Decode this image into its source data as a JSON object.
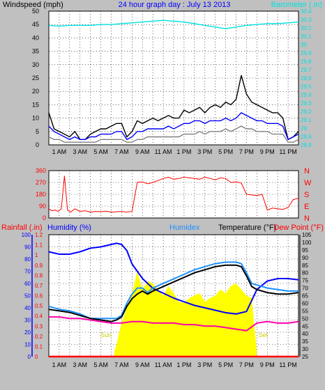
{
  "page": {
    "title": "24 hour graph day : July 13 2013",
    "colors": {
      "background": "#c0c0c0",
      "plot_background": "#ffffff",
      "grid": "#000000",
      "title": "#0000ff"
    }
  },
  "chart_data": [
    {
      "id": "wind-baro",
      "type": "line",
      "title": "24 hour graph day : July 13 2013",
      "x_tick_labels": [
        "1 AM",
        "3 AM",
        "5 AM",
        "7 AM",
        "9 AM",
        "11 AM",
        "1 PM",
        "3 PM",
        "5 PM",
        "7 PM",
        "9 PM",
        "11 PM"
      ],
      "x_hours": [
        1,
        3,
        5,
        7,
        9,
        11,
        13,
        15,
        17,
        19,
        21,
        23
      ],
      "xlim": [
        0,
        24
      ],
      "grid": true,
      "left_axis": {
        "label": "Windspeed (mph)",
        "color": "#000000",
        "ylim": [
          0,
          50
        ],
        "ticks": [
          0,
          5,
          10,
          15,
          20,
          25,
          30,
          35,
          40,
          45,
          50
        ]
      },
      "right_axis": {
        "label": "Barometer (.in)",
        "color": "#00e0e0",
        "ylim": [
          28.8,
          30.4
        ],
        "ticks": [
          "28.8",
          "28.9",
          "29",
          "29.1",
          "29.2",
          "29.3",
          "29.4",
          "29.5",
          "29.6",
          "29.7",
          "29.8",
          "29.9",
          "30",
          "30.1",
          "30.2",
          "30.3",
          "30.4"
        ]
      },
      "series": [
        {
          "key": "gust",
          "axis": "left",
          "color": "#000000",
          "x": [
            0,
            0.5,
            1,
            1.5,
            2,
            2.5,
            3,
            3.5,
            4,
            4.5,
            5,
            5.5,
            6,
            6.5,
            7,
            7.5,
            8,
            8.5,
            9,
            9.5,
            10,
            10.5,
            11,
            11.5,
            12,
            12.5,
            13,
            13.5,
            14,
            14.5,
            15,
            15.5,
            16,
            16.5,
            17,
            17.5,
            18,
            18.5,
            19,
            19.5,
            20,
            20.5,
            21,
            21.5,
            22,
            22.5,
            23,
            23.5,
            24
          ],
          "y": [
            12,
            6,
            5,
            4,
            3,
            5,
            2,
            2,
            4,
            5,
            6,
            6,
            7,
            8,
            8,
            3,
            5,
            9,
            8,
            9,
            10,
            9,
            10,
            11,
            10,
            10,
            13,
            12,
            13,
            14,
            12,
            14,
            15,
            14,
            16,
            15,
            17,
            26,
            19,
            16,
            15,
            14,
            13,
            12,
            12,
            10,
            2,
            3,
            5
          ]
        },
        {
          "key": "avg",
          "axis": "left",
          "color": "#0000ff",
          "x": [
            0,
            0.5,
            1,
            1.5,
            2,
            2.5,
            3,
            3.5,
            4,
            4.5,
            5,
            5.5,
            6,
            6.5,
            7,
            7.5,
            8,
            8.5,
            9,
            9.5,
            10,
            10.5,
            11,
            11.5,
            12,
            12.5,
            13,
            13.5,
            14,
            14.5,
            15,
            15.5,
            16,
            16.5,
            17,
            17.5,
            18,
            18.5,
            19,
            19.5,
            20,
            20.5,
            21,
            21.5,
            22,
            22.5,
            23,
            23.5,
            24
          ],
          "y": [
            7,
            5,
            4,
            3,
            2,
            3,
            2,
            2,
            3,
            3,
            4,
            4,
            4,
            5,
            5,
            2,
            3,
            5,
            5,
            6,
            6,
            6,
            6,
            7,
            6,
            7,
            8,
            8,
            9,
            9,
            8,
            9,
            9,
            9,
            10,
            9,
            10,
            12,
            11,
            10,
            9,
            9,
            8,
            8,
            8,
            7,
            2,
            3,
            4
          ]
        },
        {
          "key": "lull",
          "axis": "left",
          "color": "#808080",
          "x": [
            0,
            0.5,
            1,
            1.5,
            2,
            2.5,
            3,
            3.5,
            4,
            4.5,
            5,
            5.5,
            6,
            6.5,
            7,
            7.5,
            8,
            8.5,
            9,
            9.5,
            10,
            10.5,
            11,
            11.5,
            12,
            12.5,
            13,
            13.5,
            14,
            14.5,
            15,
            15.5,
            16,
            16.5,
            17,
            17.5,
            18,
            18.5,
            19,
            19.5,
            20,
            20.5,
            21,
            21.5,
            22,
            22.5,
            23,
            23.5,
            24
          ],
          "y": [
            3,
            2,
            2,
            1,
            1,
            1,
            1,
            1,
            1,
            1,
            2,
            2,
            2,
            2,
            2,
            1,
            1,
            2,
            2,
            3,
            3,
            3,
            3,
            3,
            3,
            3,
            4,
            4,
            4,
            5,
            4,
            5,
            5,
            5,
            6,
            5,
            6,
            7,
            6,
            6,
            5,
            5,
            5,
            4,
            4,
            4,
            1,
            1,
            2
          ]
        },
        {
          "key": "barometer",
          "axis": "right",
          "color": "#00e0e0",
          "x": [
            0,
            1,
            2,
            3,
            4,
            5,
            6,
            7,
            8,
            9,
            10,
            11,
            12,
            13,
            14,
            15,
            16,
            17,
            18,
            19,
            20,
            21,
            22,
            23,
            24
          ],
          "y": [
            30.23,
            30.22,
            30.23,
            30.23,
            30.23,
            30.24,
            30.24,
            30.25,
            30.26,
            30.27,
            30.28,
            30.29,
            30.28,
            30.27,
            30.25,
            30.23,
            30.21,
            30.19,
            30.21,
            30.23,
            30.24,
            30.25,
            30.25,
            30.26,
            30.27
          ]
        }
      ]
    },
    {
      "id": "wind-direction",
      "type": "scatter",
      "x_tick_labels": [],
      "x_hours": [
        1,
        3,
        5,
        7,
        9,
        11,
        13,
        15,
        17,
        19,
        21,
        23
      ],
      "xlim": [
        0,
        24
      ],
      "grid": true,
      "left_axis": {
        "label": "",
        "color": "#ff0000",
        "ylim": [
          0,
          360
        ],
        "ticks": [
          0,
          90,
          180,
          270,
          360
        ]
      },
      "right_axis": {
        "label": "",
        "color": "#ff0000",
        "ylim": [
          0,
          360
        ],
        "ticks": [
          "N",
          "E",
          "S",
          "W",
          "N"
        ],
        "tick_values": [
          0,
          90,
          180,
          270,
          360
        ]
      },
      "series": [
        {
          "key": "direction",
          "axis": "left",
          "color": "#ff0000",
          "x": [
            0,
            0.3,
            0.6,
            0.9,
            1.2,
            1.5,
            1.8,
            2.1,
            2.5,
            3,
            3.5,
            4,
            4.5,
            5,
            5.5,
            6,
            6.5,
            7,
            7.5,
            8,
            8.5,
            9,
            9.5,
            10,
            10.5,
            11,
            11.5,
            12,
            12.5,
            13,
            13.5,
            14,
            14.5,
            15,
            15.5,
            16,
            16.5,
            17,
            17.5,
            18,
            18.5,
            19,
            19.5,
            20,
            20.5,
            21,
            21.5,
            22,
            22.5,
            23,
            23.5,
            24
          ],
          "y": [
            70,
            55,
            60,
            50,
            70,
            320,
            60,
            45,
            70,
            50,
            55,
            45,
            50,
            48,
            52,
            45,
            47,
            50,
            45,
            50,
            270,
            275,
            260,
            270,
            285,
            300,
            310,
            295,
            300,
            310,
            305,
            300,
            295,
            310,
            300,
            290,
            305,
            300,
            270,
            275,
            265,
            180,
            175,
            170,
            180,
            60,
            75,
            70,
            65,
            80,
            140,
            150
          ]
        }
      ]
    },
    {
      "id": "temp-hum-rain",
      "type": "line",
      "x_tick_labels": [
        "1 AM",
        "3 AM",
        "5 AM",
        "7 AM",
        "9 AM",
        "11 AM",
        "1 PM",
        "3 PM",
        "5 PM",
        "7 PM",
        "9 PM",
        "11 PM"
      ],
      "x_hours": [
        1,
        3,
        5,
        7,
        9,
        11,
        13,
        15,
        17,
        19,
        21,
        23
      ],
      "xlim": [
        0,
        24
      ],
      "grid": true,
      "labels": {
        "rainfall": "Rainfall (.in)",
        "humidity": "Humidity (%)",
        "humidex": "Humidex",
        "temperature": "Temperature (°F)",
        "dewpoint": "Dew Point (°F)"
      },
      "axes": {
        "humidity": {
          "color": "#0000ff",
          "ylim": [
            0,
            100
          ],
          "ticks": [
            0,
            10,
            20,
            30,
            40,
            50,
            60,
            70,
            80,
            90,
            100
          ]
        },
        "rainfall": {
          "color": "#ff0000",
          "ylim": [
            0,
            1.2
          ],
          "ticks": [
            "0",
            "0.1",
            "0.2",
            "0.3",
            "0.4",
            "0.5",
            "0.6",
            "0.7",
            "0.8",
            "0.9",
            "1",
            "1.1",
            "1.2"
          ]
        },
        "temperature": {
          "color": "#000000",
          "ylim": [
            25,
            105
          ],
          "ticks": [
            25,
            30,
            35,
            40,
            45,
            50,
            55,
            60,
            65,
            70,
            75,
            80,
            85,
            90,
            95,
            100,
            105
          ]
        }
      },
      "sun_labels": {
        "rise": "Sun",
        "set": "Set",
        "rise_hour": 6.3,
        "set_hour": 20.0
      },
      "series": [
        {
          "key": "solar",
          "type": "area",
          "axis": "humidity",
          "color": "#ffff00",
          "x": [
            6.3,
            6.5,
            7,
            7.5,
            8,
            8.5,
            9,
            9.5,
            10,
            10.5,
            11,
            11.5,
            12,
            12.5,
            13,
            13.5,
            14,
            14.5,
            15,
            15.5,
            16,
            16.5,
            17,
            17.5,
            18,
            18.5,
            19,
            19.5,
            20
          ],
          "y": [
            4,
            10,
            28,
            40,
            52,
            70,
            55,
            62,
            60,
            55,
            50,
            58,
            52,
            45,
            44,
            48,
            50,
            52,
            45,
            48,
            50,
            55,
            52,
            58,
            60,
            55,
            50,
            48,
            4
          ]
        },
        {
          "key": "humidity",
          "axis": "humidity",
          "color": "#0000ff",
          "x": [
            0,
            1,
            2,
            3,
            4,
            5,
            6,
            6.5,
            7,
            7.5,
            8,
            8.5,
            9,
            9.5,
            10,
            11,
            12,
            13,
            14,
            15,
            16,
            17,
            18,
            18.5,
            19,
            19.5,
            20,
            21,
            22,
            23,
            24
          ],
          "y": [
            86,
            84,
            84,
            86,
            89,
            90,
            92,
            93,
            92,
            87,
            76,
            70,
            64,
            60,
            56,
            52,
            48,
            45,
            42,
            40,
            38,
            36,
            35,
            36,
            37,
            46,
            55,
            62,
            64,
            64,
            63
          ]
        },
        {
          "key": "humidex",
          "axis": "temperature",
          "color": "#1e90ff",
          "x": [
            0,
            1,
            2,
            3,
            4,
            5,
            6,
            6.5,
            7,
            7.5,
            8,
            8.5,
            9,
            9.5,
            10,
            11,
            12,
            13,
            14,
            15,
            16,
            17,
            18,
            18.5,
            19,
            19.5,
            20,
            21,
            22,
            23,
            24
          ],
          "y": [
            58,
            56,
            55,
            53,
            50,
            50,
            50,
            50,
            52,
            60,
            66,
            70,
            70,
            67,
            70,
            73,
            76,
            79,
            82,
            84,
            86,
            87,
            87,
            86,
            80,
            73,
            72,
            70,
            69,
            68,
            68
          ]
        },
        {
          "key": "temperature",
          "axis": "temperature",
          "color": "#000000",
          "x": [
            0,
            1,
            2,
            3,
            4,
            5,
            6,
            6.5,
            7,
            7.5,
            8,
            8.5,
            9,
            9.5,
            10,
            11,
            12,
            13,
            14,
            15,
            16,
            17,
            18,
            18.5,
            19,
            19.5,
            20,
            21,
            22,
            23,
            24
          ],
          "y": [
            56,
            55,
            54,
            52,
            50,
            49,
            48,
            49,
            51,
            58,
            63,
            66,
            68,
            66,
            68,
            71,
            74,
            77,
            80,
            82,
            84,
            85,
            85,
            84,
            78,
            71,
            69,
            67,
            66,
            66,
            67
          ]
        },
        {
          "key": "dewpoint",
          "axis": "temperature",
          "color": "#ff00aa",
          "x": [
            0,
            1,
            2,
            3,
            4,
            5,
            6,
            7,
            8,
            9,
            10,
            11,
            12,
            13,
            14,
            15,
            16,
            17,
            18,
            19,
            20,
            21,
            22,
            23,
            24
          ],
          "y": [
            51,
            51,
            50,
            50,
            49,
            48,
            47,
            47,
            48,
            48,
            47,
            47,
            47,
            46,
            46,
            45,
            45,
            44,
            43,
            42,
            47,
            48,
            47,
            47,
            48
          ]
        },
        {
          "key": "rainfall",
          "axis": "rainfall",
          "color": "#ff0000",
          "x": [
            0,
            24
          ],
          "y": [
            0,
            0
          ]
        }
      ]
    }
  ]
}
